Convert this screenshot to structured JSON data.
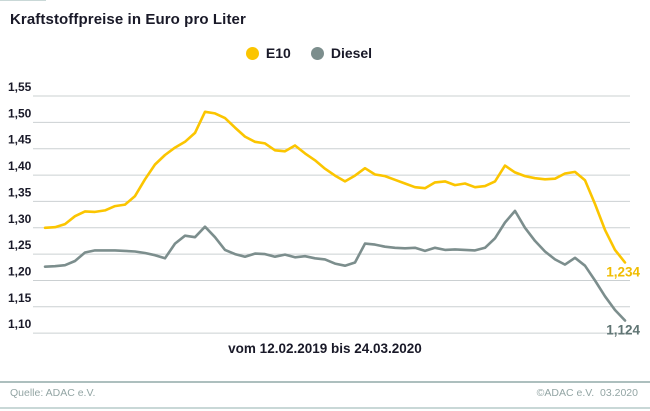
{
  "header": {
    "title": "Kraftstoffpreise in Euro pro Liter"
  },
  "legend": [
    {
      "label": "E10",
      "color": "#fbc500"
    },
    {
      "label": "Diesel",
      "color": "#7c8e8d"
    }
  ],
  "chart_data": {
    "type": "line",
    "title": "Kraftstoffpreise in Euro pro Liter",
    "unit": "Euro pro Liter",
    "x_caption": "vom 12.02.2019 bis 24.03.2020",
    "x_start": "12.02.2019",
    "x_end": "24.03.2020",
    "x_interval": "weekly",
    "ylim": [
      1.1,
      1.55
    ],
    "yticks": [
      1.55,
      1.5,
      1.45,
      1.4,
      1.35,
      1.3,
      1.25,
      1.2,
      1.15,
      1.1
    ],
    "ytick_labels": [
      "1,55",
      "1,50",
      "1,45",
      "1,40",
      "1,35",
      "1,30",
      "1,25",
      "1,20",
      "1,15",
      "1,10"
    ],
    "grid": "horizontal",
    "grid_color": "#cbd0d2",
    "legend_position": "top-center",
    "series": [
      {
        "name": "E10",
        "color": "#fbc500",
        "label_color": "#f0bc00",
        "end_label": "1,234",
        "end_value": 1.234,
        "values": [
          1.3,
          1.301,
          1.307,
          1.322,
          1.331,
          1.33,
          1.333,
          1.341,
          1.344,
          1.36,
          1.392,
          1.42,
          1.438,
          1.452,
          1.463,
          1.48,
          1.52,
          1.517,
          1.508,
          1.49,
          1.473,
          1.463,
          1.46,
          1.447,
          1.445,
          1.456,
          1.441,
          1.428,
          1.412,
          1.399,
          1.388,
          1.399,
          1.413,
          1.401,
          1.398,
          1.391,
          1.384,
          1.377,
          1.375,
          1.386,
          1.388,
          1.381,
          1.384,
          1.377,
          1.379,
          1.388,
          1.418,
          1.405,
          1.398,
          1.394,
          1.392,
          1.393,
          1.403,
          1.406,
          1.39,
          1.345,
          1.296,
          1.258,
          1.234
        ]
      },
      {
        "name": "Diesel",
        "color": "#7c8e8d",
        "label_color": "#5f7473",
        "end_label": "1,124",
        "end_value": 1.124,
        "values": [
          1.226,
          1.227,
          1.229,
          1.237,
          1.253,
          1.257,
          1.257,
          1.257,
          1.256,
          1.255,
          1.252,
          1.248,
          1.242,
          1.27,
          1.285,
          1.282,
          1.302,
          1.282,
          1.258,
          1.25,
          1.245,
          1.251,
          1.25,
          1.245,
          1.249,
          1.244,
          1.246,
          1.242,
          1.24,
          1.232,
          1.228,
          1.234,
          1.27,
          1.268,
          1.264,
          1.262,
          1.261,
          1.262,
          1.256,
          1.262,
          1.258,
          1.259,
          1.258,
          1.257,
          1.262,
          1.28,
          1.31,
          1.332,
          1.3,
          1.275,
          1.255,
          1.24,
          1.23,
          1.243,
          1.228,
          1.2,
          1.17,
          1.144,
          1.124
        ]
      }
    ]
  },
  "footer": {
    "source": "Quelle: ADAC e.V.",
    "copyright": "©ADAC e.V.  03.2020"
  }
}
